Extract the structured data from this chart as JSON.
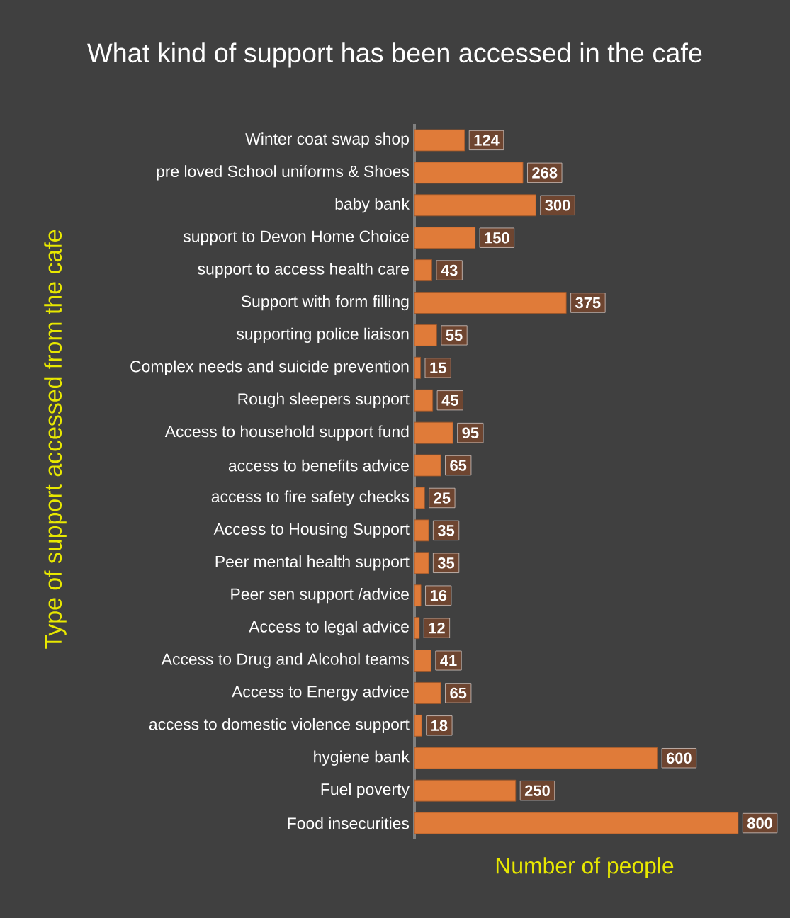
{
  "chart_data": {
    "type": "bar",
    "orientation": "horizontal",
    "title": "What kind of support has been accessed in the cafe",
    "xlabel": "Number of people",
    "ylabel": "Type of support accessed from the cafe",
    "categories": [
      "Winter coat swap shop",
      "pre loved School uniforms & Shoes",
      "baby bank",
      "support to Devon Home Choice",
      "support to access health care",
      "Support with form filling",
      "supporting  police liaison",
      "Complex needs and suicide prevention",
      "Rough sleepers support",
      "Access to household support fund",
      "access to benefits advice",
      "access to fire safety checks",
      "Access to Housing Support",
      "Peer mental health support",
      "Peer sen support /advice",
      "Access to legal advice",
      "Access to Drug and Alcohol teams",
      "Access to Energy advice",
      "access to domestic violence support",
      "hygiene bank",
      "Fuel poverty",
      "Food insecurities"
    ],
    "values": [
      124,
      268,
      300,
      150,
      43,
      375,
      55,
      15,
      45,
      95,
      65,
      25,
      35,
      35,
      16,
      12,
      41,
      65,
      18,
      600,
      250,
      800
    ],
    "color": "#e07b39",
    "data_labels": true
  }
}
